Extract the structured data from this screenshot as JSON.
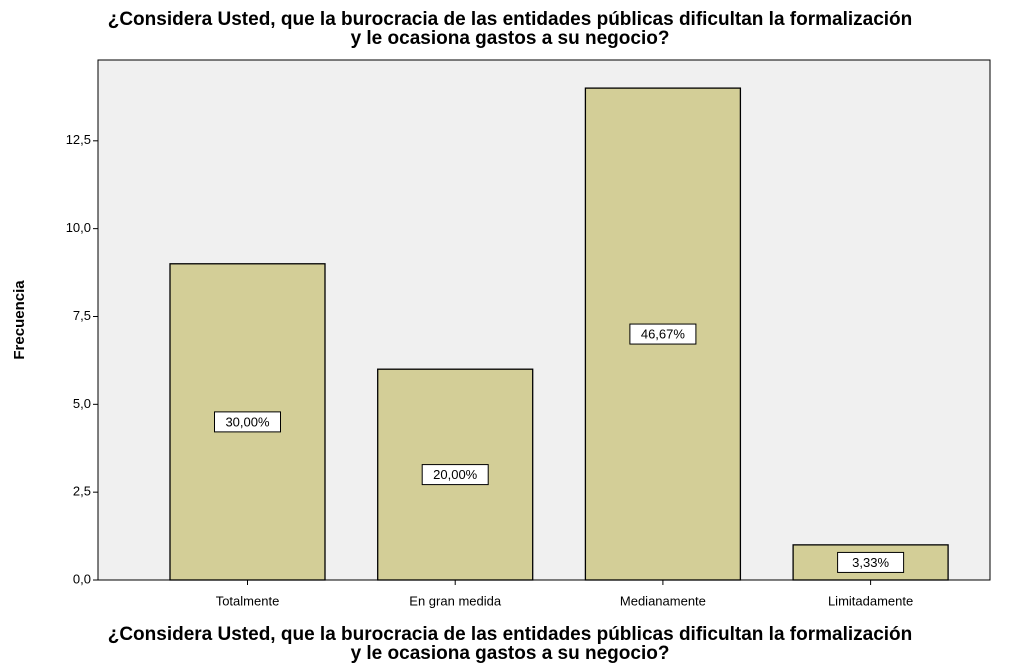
{
  "chart_data": {
    "type": "bar",
    "title": "¿Considera Usted, que la burocracia de las entidades públicas dificultan la formalización y le ocasiona gastos a su negocio?",
    "x_label": "¿Considera Usted, que la burocracia de las entidades públicas dificultan la formalización y le ocasiona gastos a su negocio?",
    "y_label": "Frecuencia",
    "categories": [
      "Totalmente",
      "En gran medida",
      "Medianamente",
      "Limitadamente"
    ],
    "values": [
      9,
      6,
      14,
      1
    ],
    "annotations": [
      "30,00%",
      "20,00%",
      "46,67%",
      "3,33%"
    ],
    "color": "#d3ce97",
    "ylim": [
      0,
      14.8
    ],
    "yticks": [
      {
        "value": 0,
        "label": "0,0"
      },
      {
        "value": 2.5,
        "label": "2,5"
      },
      {
        "value": 5,
        "label": "5,0"
      },
      {
        "value": 7.5,
        "label": "7,5"
      },
      {
        "value": 10,
        "label": "10,0"
      },
      {
        "value": 12.5,
        "label": "12,5"
      }
    ]
  }
}
